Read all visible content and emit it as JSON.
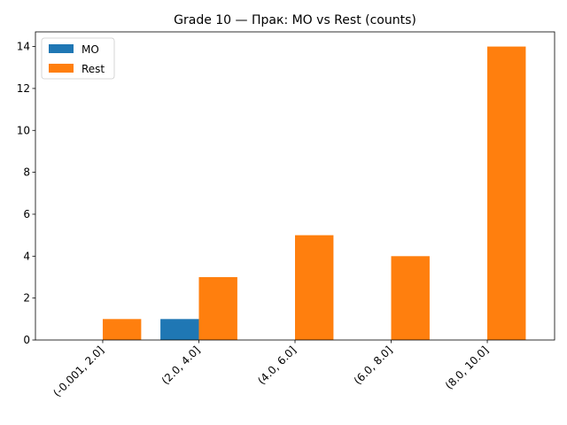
{
  "chart_data": {
    "type": "bar",
    "title": "Grade 10 — Прак: MO vs Rest (counts)",
    "xlabel": "",
    "ylabel": "",
    "categories": [
      "(-0.001, 2.0]",
      "(2.0, 4.0]",
      "(4.0, 6.0]",
      "(6.0, 8.0]",
      "(8.0, 10.0]"
    ],
    "series": [
      {
        "name": "MO",
        "values": [
          0,
          1,
          0,
          0,
          0
        ],
        "color": "#1f77b4"
      },
      {
        "name": "Rest",
        "values": [
          1,
          3,
          5,
          4,
          14
        ],
        "color": "#ff7f0e"
      }
    ],
    "ylim": [
      0,
      14.7
    ],
    "yticks": [
      0,
      2,
      4,
      6,
      8,
      10,
      12,
      14
    ],
    "grid": false,
    "legend": "top-left"
  }
}
